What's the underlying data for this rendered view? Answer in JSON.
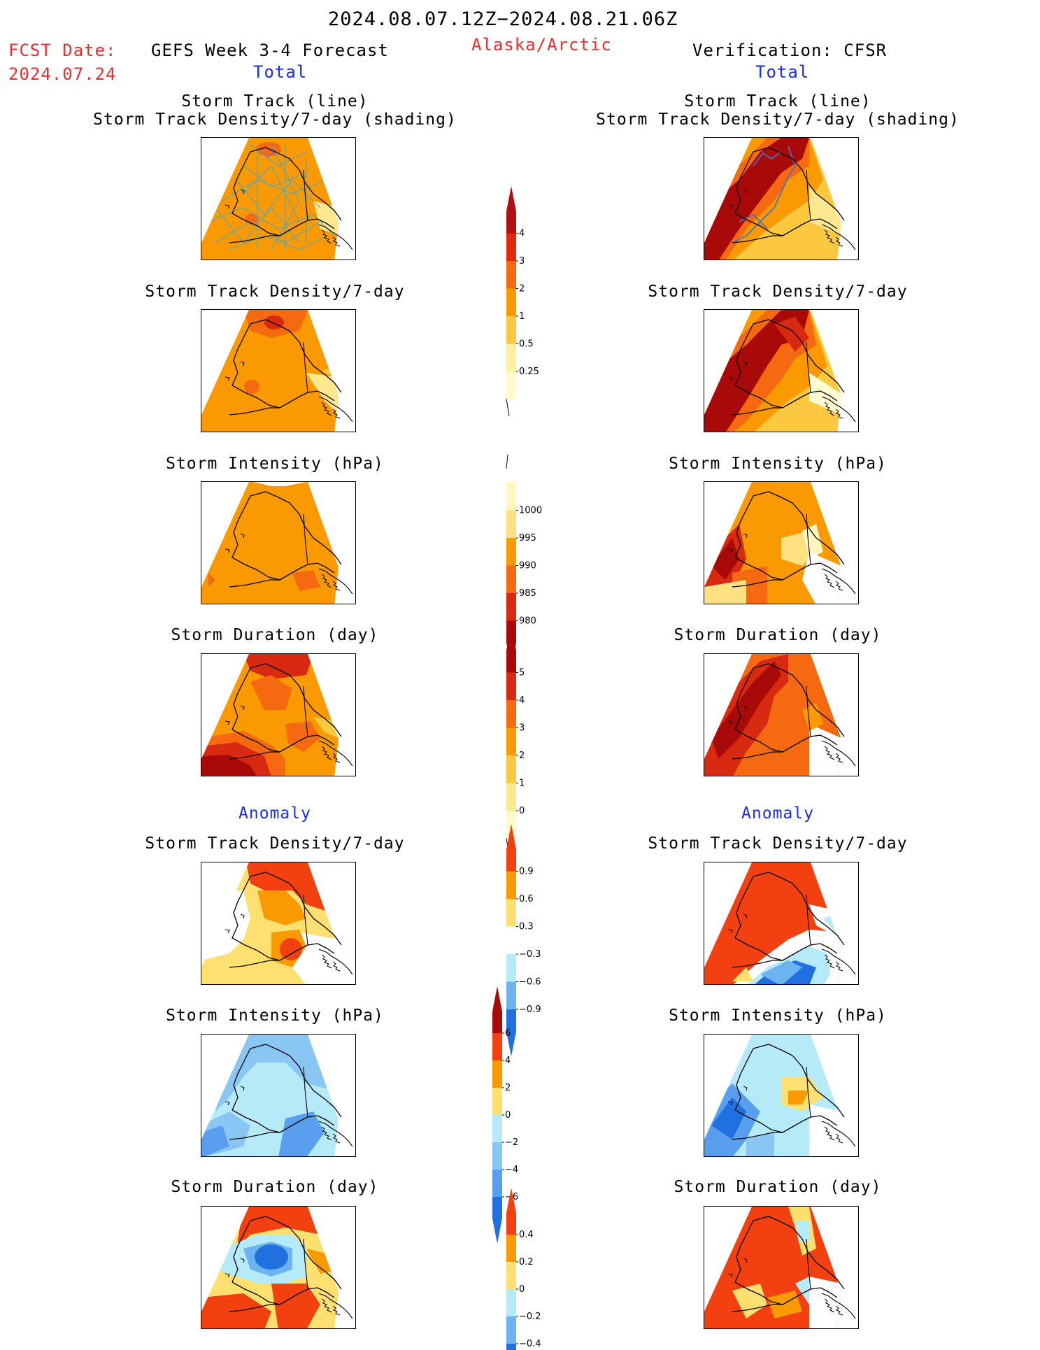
{
  "header": {
    "date_range": "2024.08.07.12Z−2024.08.21.06Z",
    "fcst_label": "FCST Date:",
    "fcst_date": "2024.07.24",
    "forecast_title": "GEFS Week 3-4 Forecast",
    "region": "Alaska/Arctic",
    "verification": "Verification: CFSR",
    "left_section": "Total",
    "right_section": "Total"
  },
  "anomaly_labels": {
    "left": "Anomaly",
    "right": "Anomaly"
  },
  "panel_titles": {
    "track_line": "Storm Track (line)",
    "track_shading": "Storm Track Density/7-day (shading)",
    "density": "Storm Track Density/7-day",
    "intensity": "Storm Intensity (hPa)",
    "duration": "Storm Duration (day)"
  },
  "colorbars": {
    "density": {
      "labels": [
        "4",
        "3",
        "2",
        "1",
        "0.5",
        "0.25"
      ],
      "colors": [
        "#b01010",
        "#e02a0a",
        "#f56a10",
        "#fb9a00",
        "#fbc840",
        "#fdf0a0",
        "#fffbd0"
      ]
    },
    "intensity": {
      "labels": [
        "1000",
        "995",
        "990",
        "985",
        "980"
      ],
      "colors": [
        "#fff6c0",
        "#fde080",
        "#fb9a00",
        "#f56a10",
        "#d82a10",
        "#a80a0a"
      ]
    },
    "duration": {
      "labels": [
        "5",
        "4",
        "3",
        "2",
        "1",
        "0"
      ],
      "colors": [
        "#a80a0a",
        "#d82a10",
        "#f56a10",
        "#fb9a00",
        "#fbc840",
        "#fde890",
        "#fffbd0"
      ]
    },
    "density_anom": {
      "labels": [
        "0.9",
        "0.6",
        "0.3",
        "−0.3",
        "−0.6",
        "−0.9"
      ],
      "colors": [
        "#f34010",
        "#fb9a00",
        "#fde070",
        "#ffffff",
        "#b5eaf8",
        "#6cb4f0",
        "#2070e0"
      ]
    },
    "intensity_anom": {
      "labels": [
        "6",
        "4",
        "2",
        "0",
        "−2",
        "−4",
        "−6"
      ],
      "colors": [
        "#a80a0a",
        "#f34010",
        "#fb9a00",
        "#fde070",
        "#b5eaf8",
        "#8ac6f4",
        "#5a9ef0",
        "#2070e0"
      ]
    },
    "duration_anom": {
      "labels": [
        "0.4",
        "0.2",
        "0",
        "−0.2",
        "−0.4"
      ],
      "colors": [
        "#f34010",
        "#fb9a00",
        "#fde070",
        "#b5eaf8",
        "#6cb4f0",
        "#2070e0"
      ]
    }
  }
}
